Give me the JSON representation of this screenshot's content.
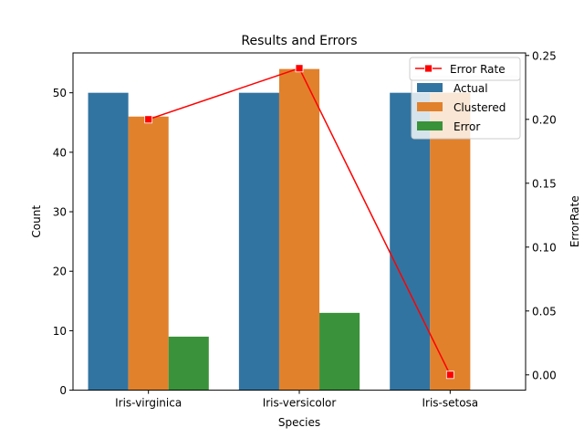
{
  "chart_data": {
    "type": "bar",
    "title": "Results and Errors",
    "xlabel": "Species",
    "ylabel": "Count",
    "y2label": "ErrorRate",
    "categories": [
      "Iris-virginica",
      "Iris-versicolor",
      "Iris-setosa"
    ],
    "ylim": [
      0,
      56.7
    ],
    "yticks": [
      0,
      10,
      20,
      30,
      40,
      50
    ],
    "y2lim": [
      -0.012,
      0.252
    ],
    "y2ticks": [
      "0.00",
      "0.05",
      "0.10",
      "0.15",
      "0.20",
      "0.25"
    ],
    "series": [
      {
        "name": "Actual",
        "color": "#3274a1",
        "values": [
          50,
          50,
          50
        ]
      },
      {
        "name": "Clustered",
        "color": "#e1812c",
        "values": [
          46,
          54,
          50
        ]
      },
      {
        "name": "Error",
        "color": "#3a923a",
        "values": [
          9,
          13,
          0
        ]
      }
    ],
    "line_series": {
      "name": "Error Rate",
      "color": "#ff0000",
      "marker": "square",
      "axis": "right",
      "values": [
        0.2,
        0.24,
        0.0
      ]
    },
    "legend_position": "top-right",
    "grid": false
  }
}
